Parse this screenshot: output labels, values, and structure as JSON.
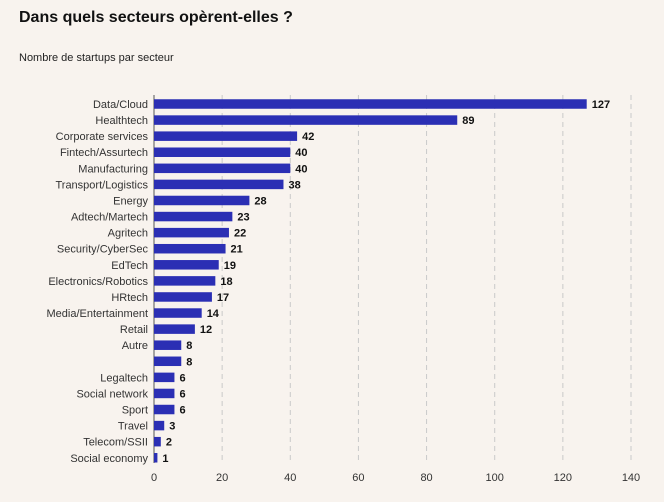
{
  "title": "Dans quels secteurs opèrent-elles ?",
  "subtitle": "Nombre de startups par secteur",
  "colors": {
    "bar": "#2b2fb4",
    "background": "#f8f3ee"
  },
  "chart_data": {
    "type": "bar",
    "orientation": "horizontal",
    "title": "Dans quels secteurs opèrent-elles ?",
    "subtitle": "Nombre de startups par secteur",
    "categories": [
      "Data/Cloud",
      "Healthtech",
      "Corporate services",
      "Fintech/Assurtech",
      "Manufacturing",
      "Transport/Logistics",
      "Energy",
      "Adtech/Martech",
      "Agritech",
      "Security/CyberSec",
      "EdTech",
      "Electronics/Robotics",
      "HRtech",
      "Media/Entertainment",
      "Retail",
      "Autre",
      "",
      "Legaltech",
      "Social network",
      "Sport",
      "Travel",
      "Telecom/SSII",
      "Social economy"
    ],
    "values": [
      127,
      89,
      42,
      40,
      40,
      38,
      28,
      23,
      22,
      21,
      19,
      18,
      17,
      14,
      12,
      8,
      8,
      6,
      6,
      6,
      3,
      2,
      1
    ],
    "xlim": [
      0,
      140
    ],
    "xticks": [
      0,
      20,
      40,
      60,
      80,
      100,
      120,
      140
    ],
    "grid": "vertical dashed",
    "legend": "none"
  }
}
